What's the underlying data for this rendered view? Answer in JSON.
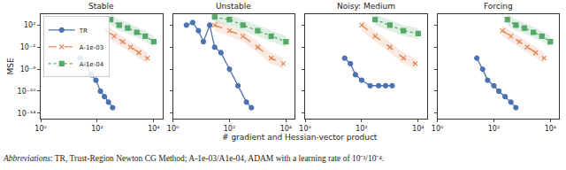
{
  "chart_data": [
    {
      "type": "line",
      "title": "Stable",
      "ylabel": "MSE",
      "log": true,
      "grid": false,
      "legend": "upper left",
      "xlim": [
        1,
        20000
      ],
      "ylim": [
        1e-15,
        10000
      ],
      "xticks": [
        {
          "value": 1,
          "label": "10⁰"
        },
        {
          "value": 100,
          "label": "10²"
        },
        {
          "value": 10000,
          "label": "10⁴"
        }
      ],
      "yticks": [
        {
          "value": 1e-14,
          "label": "10⁻¹⁴"
        },
        {
          "value": 1e-10,
          "label": "10⁻¹⁰"
        },
        {
          "value": 1e-06,
          "label": "10⁻⁶"
        },
        {
          "value": 0.01,
          "label": "10⁻²"
        },
        {
          "value": 100,
          "label": "10²"
        }
      ],
      "series": [
        {
          "name": "TR",
          "color": "#4c72b0",
          "marker": "circle",
          "line_style": "solid",
          "x": [
            25,
            40,
            60,
            90,
            130,
            180,
            250,
            350
          ],
          "values": [
            0.0001,
            1e-05,
            1e-07,
            1e-08,
            1e-10,
            1e-11,
            1e-12,
            1e-13
          ]
        },
        {
          "name": "A-1e-03",
          "color": "#dd8452",
          "marker": "x",
          "line_style": "dash",
          "x": [
            200,
            400,
            800,
            1500,
            3000,
            6000
          ],
          "values": [
            10,
            1,
            0.1,
            0.01,
            0.001,
            0.0001
          ],
          "upper": [
            100,
            10,
            1,
            0.1,
            0.01,
            0.001
          ],
          "lower": [
            1,
            0.1,
            0.01,
            0.001,
            0.0001,
            1e-05
          ]
        },
        {
          "name": "A-1e-04",
          "color": "#55a868",
          "marker": "square",
          "line_style": "dot",
          "x": [
            300,
            600,
            1200,
            2500,
            5000,
            10000
          ],
          "values": [
            1000,
            100,
            30,
            5,
            1,
            0.1
          ],
          "upper": [
            10000,
            1000,
            300,
            50,
            10,
            1
          ],
          "lower": [
            100,
            10,
            3,
            0.5,
            0.1,
            0.01
          ]
        }
      ]
    },
    {
      "type": "line",
      "title": "Unstable",
      "log": true,
      "grid": false,
      "tick_labels": "x",
      "xlim": [
        1,
        20000
      ],
      "ylim": [
        1e-15,
        10000
      ],
      "xticks": [
        {
          "value": 1,
          "label": "10⁰"
        },
        {
          "value": 100,
          "label": "10²"
        },
        {
          "value": 10000,
          "label": "10⁴"
        }
      ],
      "yticks": [
        {
          "value": 1e-14,
          "label": "10⁻¹⁴"
        },
        {
          "value": 1e-10,
          "label": "10⁻¹⁰"
        },
        {
          "value": 1e-06,
          "label": "10⁻⁶"
        },
        {
          "value": 0.01,
          "label": "10⁻²"
        },
        {
          "value": 100,
          "label": "10²"
        }
      ],
      "series": [
        {
          "name": "TR",
          "color": "#4c72b0",
          "marker": "circle",
          "line_style": "solid",
          "x": [
            3,
            5,
            8,
            12,
            20,
            30,
            50,
            100,
            200,
            400,
            600
          ],
          "values": [
            100,
            300,
            10,
            0.1,
            100,
            0.01,
            0.001,
            1e-06,
            1e-09,
            1e-12,
            1e-13
          ]
        },
        {
          "name": "A-1e-03",
          "color": "#dd8452",
          "marker": "x",
          "line_style": "dash",
          "x": [
            30,
            100,
            300,
            1000,
            3000,
            8000
          ],
          "values": [
            100,
            10,
            1,
            0.01,
            0.0001,
            1e-05
          ],
          "upper": [
            1000,
            100,
            10,
            0.1,
            0.001,
            0.0001
          ],
          "lower": [
            10,
            1,
            0.1,
            0.001,
            1e-05,
            1e-06
          ]
        },
        {
          "name": "A-1e-04",
          "color": "#55a868",
          "marker": "square",
          "line_style": "dot",
          "x": [
            30,
            100,
            300,
            1000,
            3000,
            10000
          ],
          "values": [
            3000,
            1000,
            100,
            10,
            1,
            0.1
          ],
          "upper": [
            30000,
            10000,
            1000,
            100,
            10,
            1
          ],
          "lower": [
            300,
            100,
            10,
            1,
            0.1,
            0.01
          ]
        }
      ]
    },
    {
      "type": "line",
      "title": "Noisy: Medium",
      "log": true,
      "grid": false,
      "tick_labels": "x",
      "xlim": [
        1,
        20000
      ],
      "ylim": [
        1e-15,
        10000
      ],
      "xticks": [
        {
          "value": 1,
          "label": "10⁰"
        },
        {
          "value": 100,
          "label": "10²"
        },
        {
          "value": 10000,
          "label": "10⁴"
        }
      ],
      "yticks": [
        {
          "value": 1e-14,
          "label": "10⁻¹⁴"
        },
        {
          "value": 1e-10,
          "label": "10⁻¹⁰"
        },
        {
          "value": 1e-06,
          "label": "10⁻⁶"
        },
        {
          "value": 0.01,
          "label": "10⁻²"
        },
        {
          "value": 100,
          "label": "10²"
        }
      ],
      "series": [
        {
          "name": "TR",
          "color": "#4c72b0",
          "marker": "circle",
          "line_style": "solid",
          "x": [
            25,
            40,
            60,
            100,
            200,
            400,
            700,
            1200
          ],
          "values": [
            0.0001,
            1e-05,
            1e-07,
            1e-08,
            1e-09,
            1e-09,
            1e-09,
            1e-09
          ]
        },
        {
          "name": "A-1e-03",
          "color": "#dd8452",
          "marker": "x",
          "line_style": "dash",
          "x": [
            100,
            300,
            1000,
            3000,
            8000
          ],
          "values": [
            100,
            1,
            0.01,
            0.0001,
            1e-05
          ],
          "upper": [
            1000,
            10,
            0.1,
            0.001,
            0.0001
          ],
          "lower": [
            10,
            0.1,
            0.001,
            1e-05,
            1e-06
          ]
        },
        {
          "name": "A-1e-04",
          "color": "#55a868",
          "marker": "square",
          "line_style": "dot",
          "x": [
            300,
            1000,
            3000,
            10000
          ],
          "values": [
            1000,
            100,
            10,
            3
          ],
          "upper": [
            10000,
            1000,
            100,
            30
          ],
          "lower": [
            100,
            10,
            1,
            0.3
          ]
        }
      ]
    },
    {
      "type": "line",
      "title": "Forcing",
      "log": true,
      "grid": false,
      "tick_labels": "x",
      "xlim": [
        1,
        20000
      ],
      "ylim": [
        1e-15,
        10000
      ],
      "xticks": [
        {
          "value": 1,
          "label": "10⁰"
        },
        {
          "value": 100,
          "label": "10²"
        },
        {
          "value": 10000,
          "label": "10⁴"
        }
      ],
      "yticks": [
        {
          "value": 1e-14,
          "label": "10⁻¹⁴"
        },
        {
          "value": 1e-10,
          "label": "10⁻¹⁰"
        },
        {
          "value": 1e-06,
          "label": "10⁻⁶"
        },
        {
          "value": 0.01,
          "label": "10⁻²"
        },
        {
          "value": 100,
          "label": "10²"
        }
      ],
      "series": [
        {
          "name": "TR",
          "color": "#4c72b0",
          "marker": "circle",
          "line_style": "solid",
          "x": [
            25,
            40,
            60,
            100,
            150,
            250,
            400,
            600
          ],
          "values": [
            0.0001,
            1e-06,
            1e-08,
            1e-09,
            1e-10,
            1e-11,
            1e-12,
            1e-13
          ]
        },
        {
          "name": "A-1e-03",
          "color": "#dd8452",
          "marker": "x",
          "line_style": "dash",
          "x": [
            200,
            400,
            800,
            1500,
            3000,
            6000
          ],
          "values": [
            10,
            1,
            0.1,
            0.01,
            0.001,
            0.0001
          ],
          "upper": [
            100,
            10,
            1,
            0.1,
            0.01,
            0.001
          ],
          "lower": [
            1,
            0.1,
            0.01,
            0.001,
            0.0001,
            1e-05
          ]
        },
        {
          "name": "A-1e-04",
          "color": "#55a868",
          "marker": "square",
          "line_style": "dot",
          "x": [
            300,
            600,
            1200,
            2500,
            5000,
            10000
          ],
          "values": [
            1000,
            100,
            30,
            5,
            1,
            0.1
          ],
          "upper": [
            10000,
            1000,
            300,
            50,
            10,
            1
          ],
          "lower": [
            100,
            10,
            3,
            0.5,
            0.1,
            0.01
          ]
        }
      ]
    }
  ],
  "xlabel": "# gradient and Hessian-vector product",
  "caption": "Abbreviations: TR, Trust-Region Newton CG Method; A-1e-03/A1e-04, ADAM with a learning rate of 10⁻³/10⁻⁴."
}
